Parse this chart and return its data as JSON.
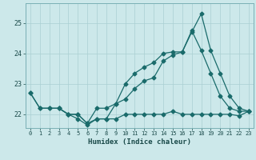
{
  "xlabel": "Humidex (Indice chaleur)",
  "bg_color": "#cce8ea",
  "line_color": "#1a6b6b",
  "grid_color": "#aacfd2",
  "xlim": [
    -0.5,
    23.5
  ],
  "ylim": [
    21.55,
    25.65
  ],
  "yticks": [
    22,
    23,
    24,
    25
  ],
  "xticks": [
    0,
    1,
    2,
    3,
    4,
    5,
    6,
    7,
    8,
    9,
    10,
    11,
    12,
    13,
    14,
    15,
    16,
    17,
    18,
    19,
    20,
    21,
    22,
    23
  ],
  "line1_x": [
    0,
    1,
    2,
    3,
    4,
    5,
    6,
    7,
    8,
    9,
    10,
    11,
    12,
    13,
    14,
    15,
    16,
    17,
    18,
    19,
    20,
    21,
    22,
    23
  ],
  "line1_y": [
    22.7,
    22.2,
    22.2,
    22.2,
    22.0,
    21.85,
    21.65,
    21.85,
    21.85,
    21.85,
    22.0,
    22.0,
    22.0,
    22.0,
    22.0,
    22.1,
    22.0,
    22.0,
    22.0,
    22.0,
    22.0,
    22.0,
    21.95,
    22.1
  ],
  "line2_x": [
    0,
    1,
    2,
    3,
    4,
    5,
    6,
    7,
    8,
    9,
    10,
    11,
    12,
    13,
    14,
    15,
    16,
    17,
    18,
    19,
    20,
    21,
    22,
    23
  ],
  "line2_y": [
    22.7,
    22.2,
    22.2,
    22.2,
    22.0,
    22.0,
    21.7,
    22.2,
    22.2,
    22.35,
    23.0,
    23.35,
    23.55,
    23.7,
    24.0,
    24.05,
    24.05,
    24.7,
    25.3,
    24.1,
    23.35,
    22.6,
    22.2,
    22.1
  ],
  "line3_x": [
    3,
    4,
    5,
    6,
    7,
    8,
    9,
    10,
    11,
    12,
    13,
    14,
    15,
    16,
    17,
    18,
    19,
    20,
    21,
    22,
    23
  ],
  "line3_y": [
    22.2,
    22.0,
    22.0,
    21.7,
    21.85,
    21.85,
    22.35,
    22.5,
    22.85,
    23.1,
    23.2,
    23.75,
    23.95,
    24.05,
    24.75,
    24.1,
    23.35,
    22.6,
    22.2,
    22.1,
    22.1
  ]
}
